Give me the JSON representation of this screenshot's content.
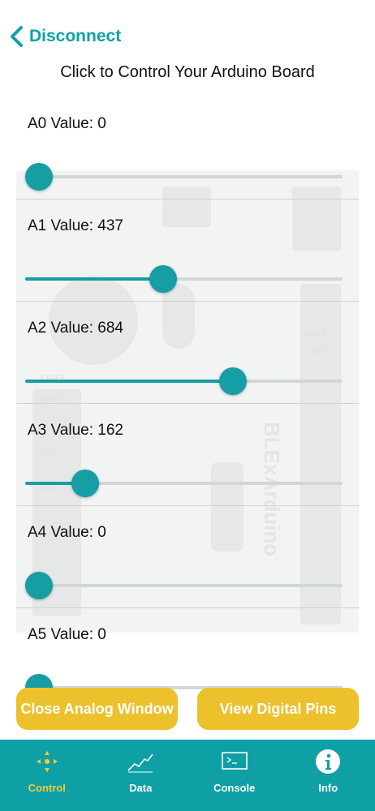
{
  "header": {
    "back_label": "Disconnect"
  },
  "title": "Click to Control Your Arduino Board",
  "sliders": [
    {
      "label": "A0 Value: 0",
      "value": 0
    },
    {
      "label": "A1 Value: 437",
      "value": 437
    },
    {
      "label": "A2 Value: 684",
      "value": 684
    },
    {
      "label": "A3 Value: 162",
      "value": 162
    },
    {
      "label": "A4 Value: 0",
      "value": 0
    },
    {
      "label": "A5 Value: 0",
      "value": 0
    }
  ],
  "slider_max": 1023,
  "buttons": {
    "close_analog": "Close Analog Window",
    "view_digital": "View Digital Pins"
  },
  "tabs": [
    {
      "label": "Control",
      "icon": "control-icon",
      "active": true
    },
    {
      "label": "Data",
      "icon": "chart-line-icon",
      "active": false
    },
    {
      "label": "Console",
      "icon": "terminal-icon",
      "active": false
    },
    {
      "label": "Info",
      "icon": "info-icon",
      "active": false
    }
  ],
  "colors": {
    "accent": "#159ea4",
    "button": "#ecc12c",
    "tab_active": "#f3c93c"
  }
}
